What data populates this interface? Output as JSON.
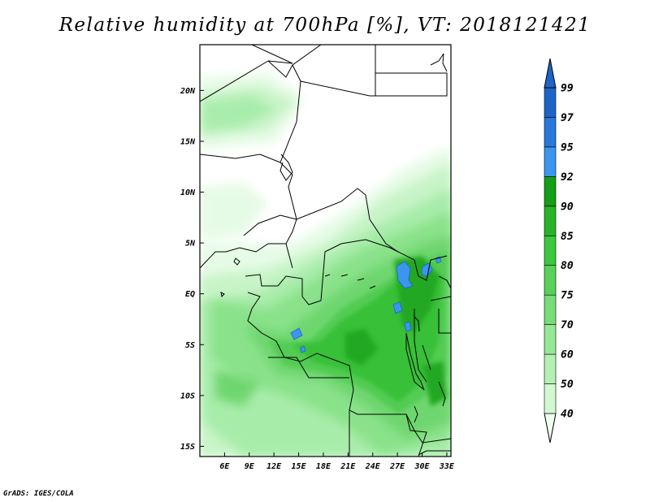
{
  "title": "Relative humidity at 700hPa [%], VT: 2018121421",
  "footer": "GrADS: IGES/COLA",
  "map": {
    "lon_range": [
      3,
      33.5
    ],
    "lat_range": [
      -16,
      24.5
    ],
    "lon_ticks": [
      "6E",
      "9E",
      "12E",
      "15E",
      "18E",
      "21E",
      "24E",
      "27E",
      "30E",
      "33E"
    ],
    "lat_ticks": [
      "20N",
      "15N",
      "10N",
      "5N",
      "EQ",
      "5S",
      "10S",
      "15S"
    ]
  },
  "colorbar": {
    "levels": [
      "40",
      "50",
      "60",
      "70",
      "75",
      "80",
      "85",
      "90",
      "92",
      "95",
      "97",
      "99"
    ],
    "colors": [
      "#f0fff0",
      "#d2f8d2",
      "#b4f0b4",
      "#96e896",
      "#78dc78",
      "#5ad25a",
      "#3cc83c",
      "#28b428",
      "#14a014",
      "#3c96f0",
      "#2878dc",
      "#1e64c8"
    ]
  }
}
